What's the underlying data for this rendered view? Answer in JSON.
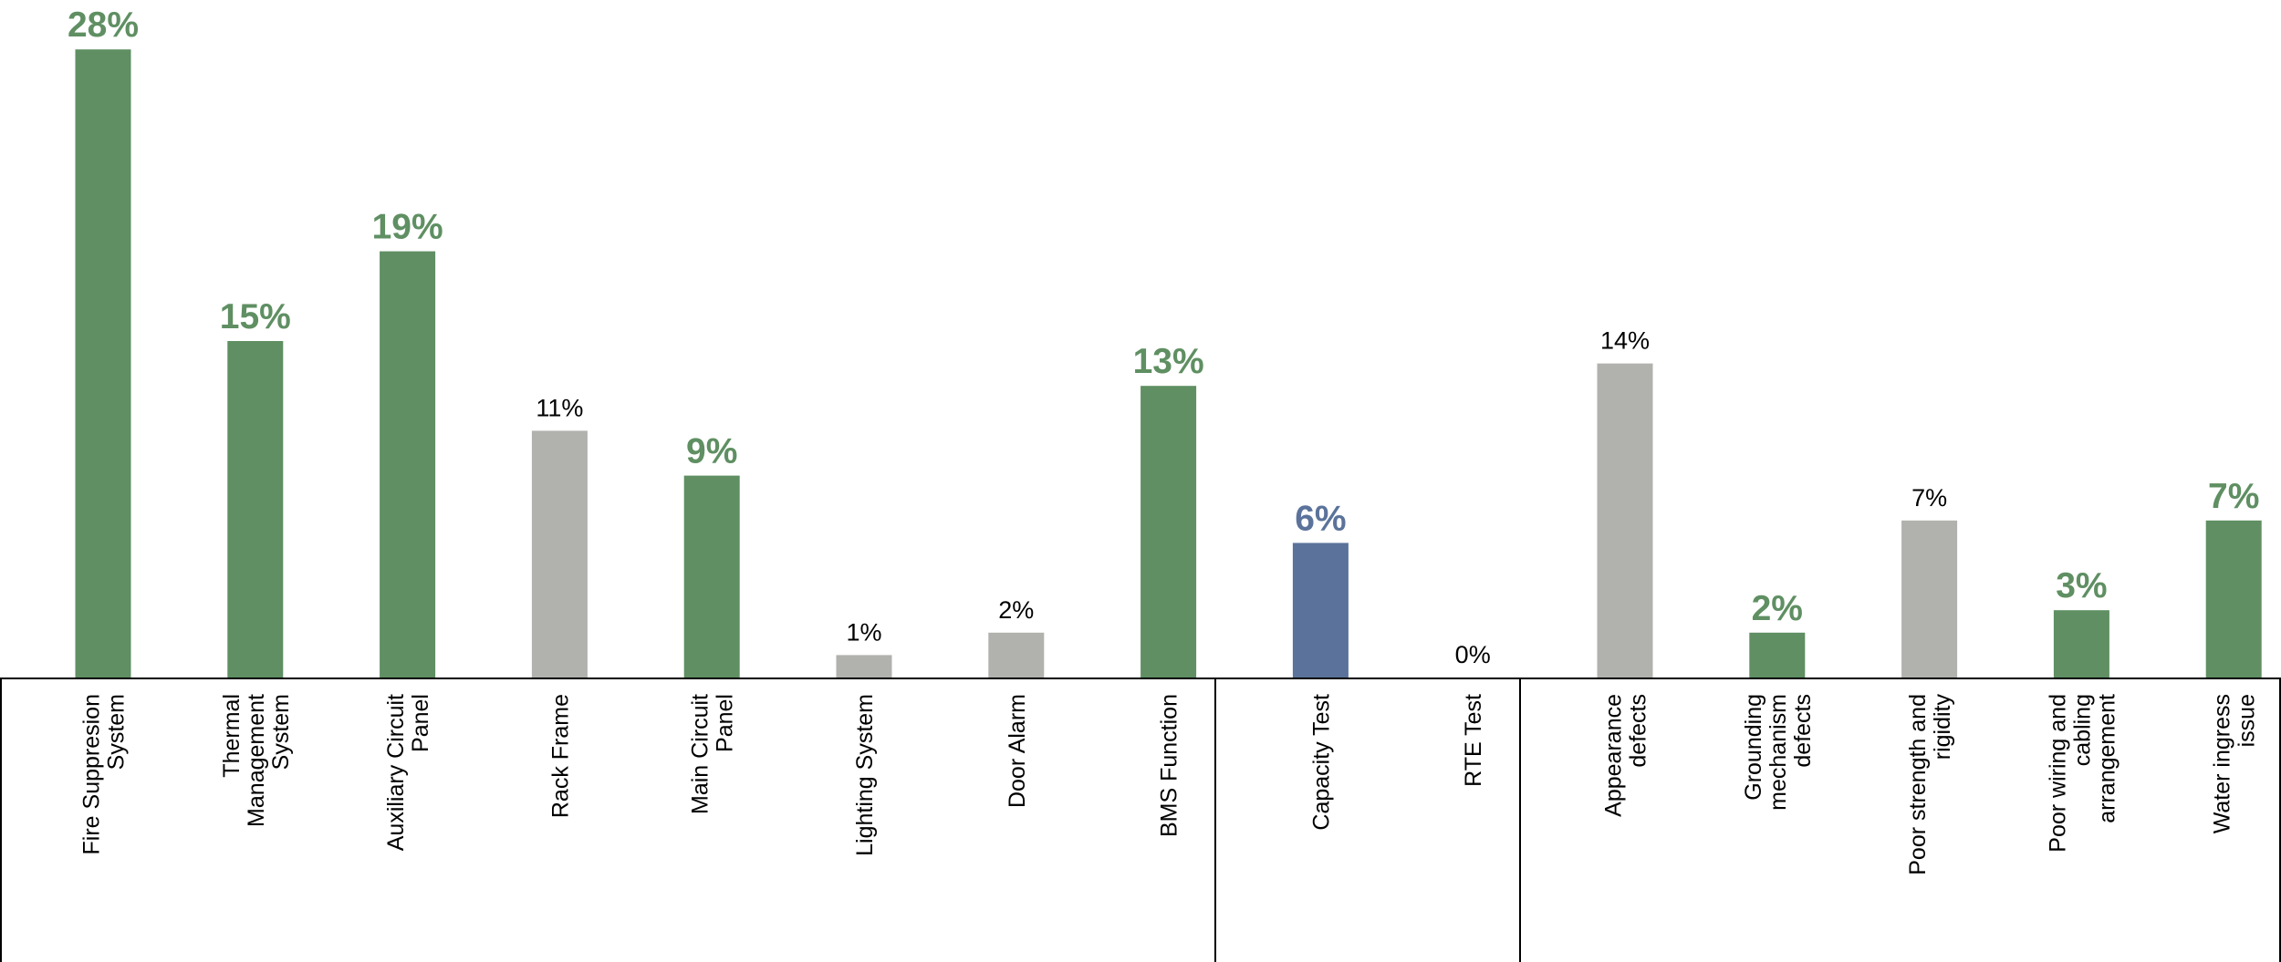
{
  "chart_data": {
    "type": "bar",
    "categories": [
      "Fire Suppresion\nSystem",
      "Thermal\nManagement\nSystem",
      "Auxiliary Circuit\nPanel",
      "Rack Frame",
      "Main Circuit\nPanel",
      "Lighting System",
      "Door Alarm",
      "BMS Function",
      "Capacity Test",
      "RTE Test",
      "Appearance\ndefects",
      "Grounding\nmechanism\ndefects",
      "Poor strength and\nrigidity",
      "Poor wiring and\ncabling\narrangement",
      "Water ingress\nissue"
    ],
    "values": [
      28,
      15,
      19,
      11,
      9,
      1,
      2,
      13,
      6,
      0,
      14,
      2,
      7,
      3,
      7
    ],
    "value_labels": [
      "28%",
      "15%",
      "19%",
      "11%",
      "9%",
      "1%",
      "2%",
      "13%",
      "6%",
      "0%",
      "14%",
      "2%",
      "7%",
      "3%",
      "7%"
    ],
    "colors": [
      "#5f8f62",
      "#5f8f62",
      "#5f8f62",
      "#b1b1ad",
      "#5f8f62",
      "#b1b1ad",
      "#b1b1ad",
      "#5f8f62",
      "#5b739b",
      "#b1b1ad",
      "#b1b1ad",
      "#5f8f62",
      "#b1b1ad",
      "#5f8f62",
      "#5f8f62"
    ],
    "value_label_colors": [
      "#5f8f62",
      "#5f8f62",
      "#5f8f62",
      "#000000",
      "#5f8f62",
      "#000000",
      "#000000",
      "#5f8f62",
      "#5b739b",
      "#000000",
      "#000000",
      "#5f8f62",
      "#000000",
      "#5f8f62",
      "#5f8f62"
    ]
  }
}
